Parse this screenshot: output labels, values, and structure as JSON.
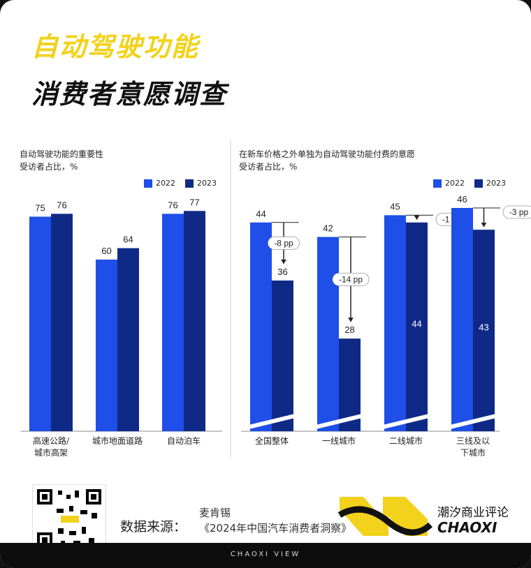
{
  "title_line1": "自动驾驶功能",
  "title_line2": "消费者意愿调查",
  "colors": {
    "y2022": "#1f4ee8",
    "y2023": "#0f2a86",
    "title_yellow": "#f2d21a"
  },
  "chart_data": [
    {
      "type": "bar",
      "title": "自动驾驶功能的重要性",
      "subtitle": "受访者占比，%",
      "categories": [
        "高速公路/城市高架",
        "城市地面道路",
        "自动泊车"
      ],
      "category_lines": [
        [
          "高速公路/",
          "城市高架"
        ],
        [
          "城市地面道路"
        ],
        [
          "自动泊车"
        ]
      ],
      "series": [
        {
          "name": "2022",
          "values": [
            75,
            60,
            76
          ]
        },
        {
          "name": "2023",
          "values": [
            76,
            64,
            77
          ]
        }
      ],
      "axis_broken": false
    },
    {
      "type": "bar",
      "title": "在新车价格之外单独为自动驾驶功能付费的意愿",
      "subtitle": "受访者占比，%",
      "categories": [
        "全国整体",
        "一线城市",
        "二线城市",
        "三线及以下城市"
      ],
      "category_lines": [
        [
          "全国整体"
        ],
        [
          "一线城市"
        ],
        [
          "二线城市"
        ],
        [
          "三线及以",
          "下城市"
        ]
      ],
      "series": [
        {
          "name": "2022",
          "values": [
            44,
            42,
            45,
            46
          ]
        },
        {
          "name": "2023",
          "values": [
            36,
            28,
            44,
            43
          ]
        }
      ],
      "annotations": [
        "-8 pp",
        "-14 pp",
        "-1 pp",
        "-3 pp"
      ],
      "axis_broken": true
    }
  ],
  "footer": {
    "source_label": "数据来源：",
    "source_author": "麦肯锡",
    "source_title": "《2024年中国汽车消费者洞察》",
    "brand_cn": "潮汐商业评论",
    "brand_en": "CHAOXI",
    "bar_text": "CHAOXI VIEW"
  }
}
